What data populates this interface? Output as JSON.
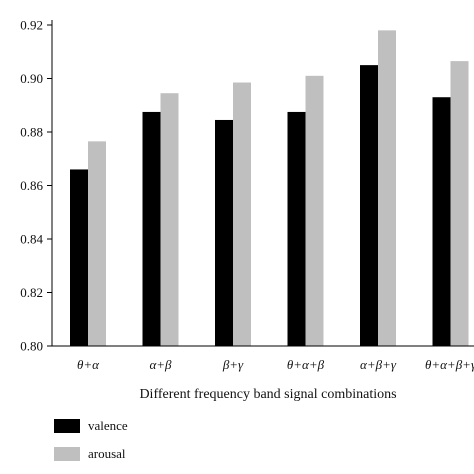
{
  "chart_data": {
    "type": "bar",
    "title": "",
    "xlabel": "Different frequency band signal combinations",
    "ylabel": "",
    "ylim": [
      0.8,
      0.92
    ],
    "yticks": [
      "0.80",
      "0.82",
      "0.84",
      "0.86",
      "0.88",
      "0.90",
      "0.92"
    ],
    "categories": [
      "θ+α",
      "α+β",
      "β+γ",
      "θ+α+β",
      "α+β+γ",
      "θ+α+β+γ"
    ],
    "series": [
      {
        "name": "valence",
        "color": "#000000",
        "values": [
          0.866,
          0.8875,
          0.8845,
          0.8875,
          0.905,
          0.893
        ]
      },
      {
        "name": "arousal",
        "color": "#bfbfbf",
        "values": [
          0.8765,
          0.8945,
          0.8985,
          0.901,
          0.918,
          0.9065
        ]
      }
    ],
    "grid": false,
    "legend_position": "bottom-left"
  }
}
